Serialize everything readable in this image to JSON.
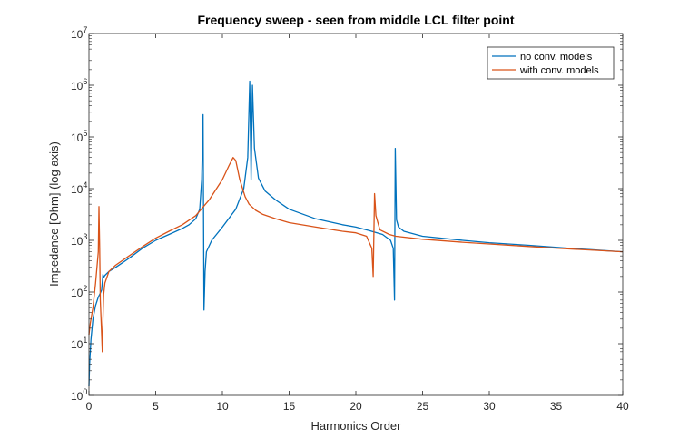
{
  "chart_data": {
    "type": "line",
    "title": "Frequency sweep - seen from middle LCL filter point",
    "xlabel": "Harmonics Order",
    "ylabel": "Impedance [Ohm] (log axis)",
    "xlim": [
      0,
      40
    ],
    "ylim": [
      1,
      10000000
    ],
    "yscale": "log",
    "grid": false,
    "legend_position": "top-right",
    "x_ticks": [
      "0",
      "5",
      "10",
      "15",
      "20",
      "25",
      "30",
      "35",
      "40"
    ],
    "y_ticks": [
      {
        "base": "10",
        "exp": "0"
      },
      {
        "base": "10",
        "exp": "1"
      },
      {
        "base": "10",
        "exp": "2"
      },
      {
        "base": "10",
        "exp": "3"
      },
      {
        "base": "10",
        "exp": "4"
      },
      {
        "base": "10",
        "exp": "5"
      },
      {
        "base": "10",
        "exp": "6"
      },
      {
        "base": "10",
        "exp": "7"
      }
    ],
    "series": [
      {
        "name": "no conv. models",
        "color": "#0072BD",
        "x": [
          0,
          0.05,
          0.15,
          0.3,
          0.5,
          0.7,
          0.85,
          0.95,
          1.02,
          1.05,
          1.1,
          1.2,
          1.5,
          2,
          3,
          4,
          5,
          6,
          7,
          7.5,
          8,
          8.3,
          8.45,
          8.55,
          8.62,
          8.7,
          8.8,
          9.2,
          10,
          11,
          11.6,
          11.9,
          12.05,
          12.15,
          12.25,
          12.3,
          12.4,
          12.7,
          13.2,
          14,
          15,
          17,
          19,
          20,
          21,
          22,
          22.6,
          22.8,
          22.9,
          22.95,
          23.05,
          23.2,
          23.6,
          25,
          28,
          30,
          33,
          36,
          38,
          40
        ],
        "y": [
          1.5,
          4,
          12,
          30,
          55,
          80,
          95,
          110,
          180,
          220,
          190,
          210,
          250,
          300,
          450,
          700,
          1000,
          1300,
          1700,
          2000,
          2600,
          4000,
          15000,
          270000,
          45,
          250,
          600,
          1000,
          1800,
          4000,
          10000,
          40000,
          1200000,
          15000,
          1000000,
          400000,
          60000,
          16000,
          9000,
          6000,
          4000,
          2600,
          2000,
          1800,
          1550,
          1300,
          1000,
          700,
          70,
          60000,
          2500,
          1800,
          1500,
          1200,
          1000,
          900,
          800,
          700,
          650,
          600
        ]
      },
      {
        "name": "with conv. models",
        "color": "#D95319",
        "x": [
          0,
          0.1,
          0.3,
          0.5,
          0.7,
          0.75,
          0.8,
          0.85,
          0.95,
          1.0,
          1.05,
          1.1,
          1.2,
          1.5,
          2,
          3,
          4,
          5,
          6,
          7,
          8,
          9,
          10,
          10.5,
          10.8,
          11.0,
          11.3,
          11.7,
          12,
          12.5,
          13,
          14,
          15,
          17,
          19,
          20,
          20.8,
          21.2,
          21.3,
          21.4,
          21.5,
          21.8,
          22.5,
          23,
          25,
          28,
          30,
          33,
          36,
          38,
          40
        ],
        "y": [
          15,
          25,
          50,
          150,
          600,
          4500,
          700,
          70,
          15,
          7,
          30,
          90,
          150,
          250,
          330,
          500,
          750,
          1100,
          1500,
          2000,
          3000,
          6000,
          15000,
          28000,
          40000,
          35000,
          15000,
          7000,
          5000,
          3800,
          3200,
          2600,
          2200,
          1800,
          1500,
          1400,
          1200,
          700,
          200,
          8000,
          3000,
          1600,
          1300,
          1200,
          1050,
          920,
          850,
          760,
          680,
          640,
          600
        ]
      }
    ]
  }
}
